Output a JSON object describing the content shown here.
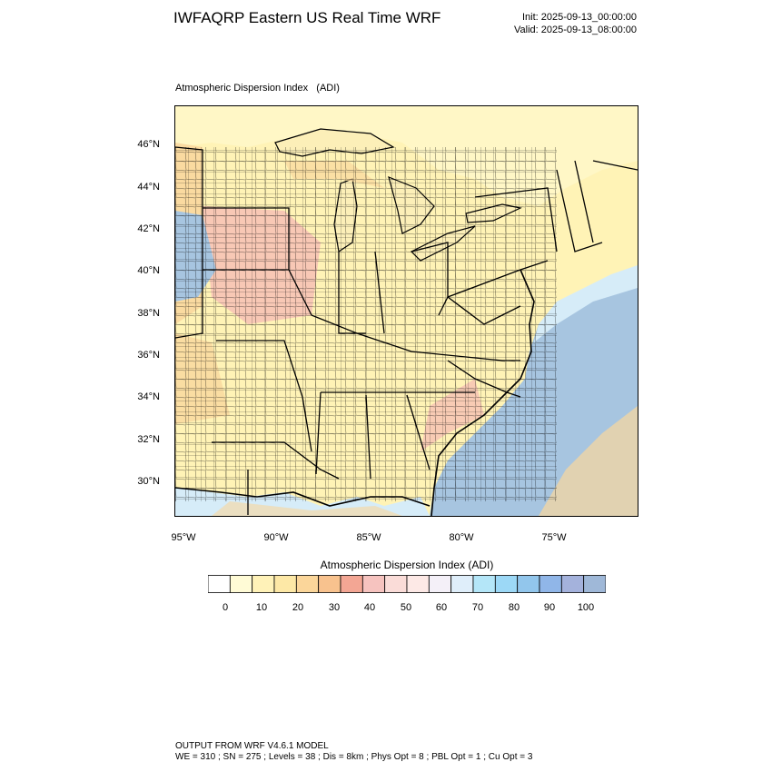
{
  "header": {
    "title": "IWFAQRP Eastern US Real Time WRF",
    "init": "Init: 2025-09-13_00:00:00",
    "valid": "Valid: 2025-09-13_08:00:00"
  },
  "plot": {
    "title": "Atmospheric Dispersion Index   (ADI)",
    "lat_labels": [
      "46°N",
      "44°N",
      "42°N",
      "40°N",
      "38°N",
      "36°N",
      "34°N",
      "32°N",
      "30°N"
    ],
    "lon_labels": [
      "95°W",
      "90°W",
      "85°W",
      "80°W",
      "75°W"
    ]
  },
  "colorbar": {
    "title": "Atmospheric Dispersion Index  (ADI)",
    "labels": [
      "0",
      "10",
      "20",
      "30",
      "40",
      "50",
      "60",
      "70",
      "80",
      "90",
      "100"
    ],
    "colors": [
      "#ffffff",
      "#fffbd6",
      "#fff2b8",
      "#fde8a6",
      "#fbd69a",
      "#f8c28e",
      "#f3a694",
      "#f6c3bf",
      "#fadcd8",
      "#fde9e6",
      "#f4f0f8",
      "#dfeefa",
      "#b4e6f8",
      "#9cd8f6",
      "#92c6ec",
      "#90b6e8",
      "#a4b2dc",
      "#9fb8d8"
    ],
    "palette": {
      "land_yellow": "#fff3b6",
      "land_orange": "#f9d79d",
      "land_pink": "#f5b9b4",
      "water_blue": "#a7c5e0",
      "water_light": "#d6ecf8",
      "lake_yellow": "#fcefb8",
      "canada": "#fff7c6"
    }
  },
  "footer": {
    "line1": "OUTPUT FROM WRF V4.6.1 MODEL",
    "line2": "WE = 310 ; SN = 275 ; Levels = 38 ; Dis = 8km ; Phys Opt = 8 ; PBL Opt = 1 ; Cu Opt = 3"
  }
}
